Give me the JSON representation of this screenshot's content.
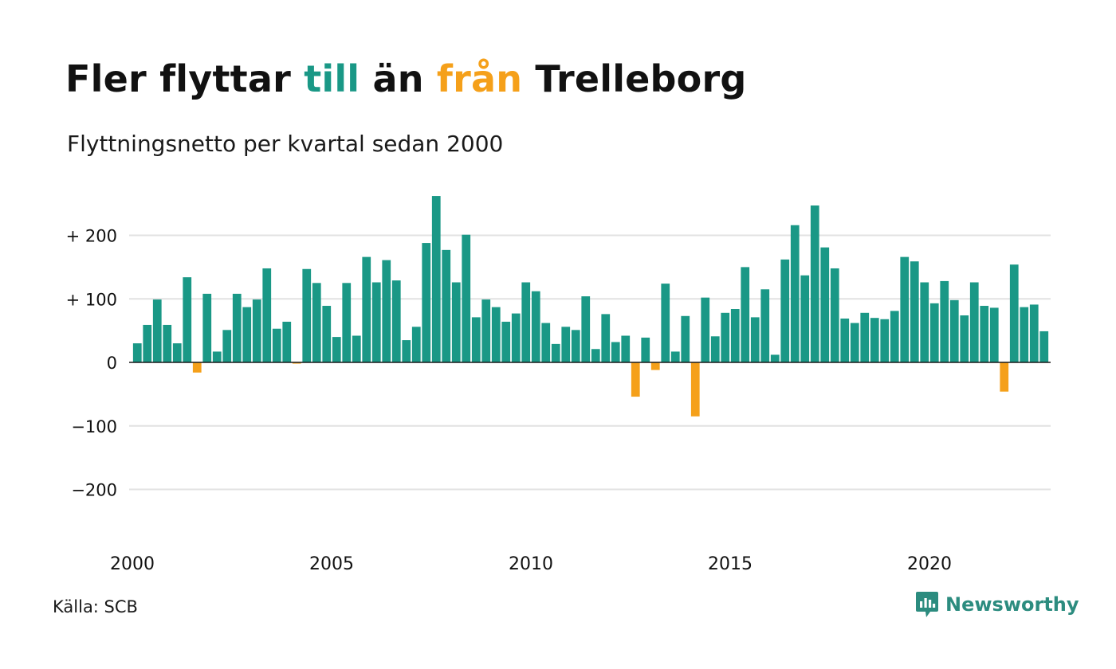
{
  "title": {
    "part1": "Fler flyttar ",
    "part2": "till",
    "part3": " än ",
    "part4": "från",
    "part5": " Trelleborg"
  },
  "subtitle": "Flyttningsnetto per kvartal sedan 2000",
  "source": "Källa: SCB",
  "brand": {
    "name": "Newsworthy",
    "icon": "newsworthy-logo-icon"
  },
  "colors": {
    "positive": "#1a9886",
    "negative": "#f5a01a",
    "text": "#111111",
    "grid": "#e2e2e2",
    "brand": "#2c8c7f"
  },
  "chart_data": {
    "type": "bar",
    "xlim": [
      2000,
      2023
    ],
    "ylim": [
      -250,
      260
    ],
    "y_ticks": [
      {
        "value": 200,
        "label": "+ 200"
      },
      {
        "value": 100,
        "label": "+ 100"
      },
      {
        "value": 0,
        "label": "0"
      },
      {
        "value": -100,
        "label": "−100"
      },
      {
        "value": -200,
        "label": "−200"
      }
    ],
    "x_ticks": [
      "2000",
      "2005",
      "2010",
      "2015",
      "2020"
    ],
    "grid": true,
    "start_year": 2000,
    "start_quarter": 1,
    "values": [
      30,
      59,
      99,
      59,
      30,
      134,
      -16,
      108,
      17,
      51,
      108,
      87,
      99,
      148,
      53,
      64,
      -2,
      147,
      125,
      89,
      40,
      125,
      42,
      166,
      126,
      161,
      129,
      35,
      56,
      188,
      262,
      177,
      126,
      201,
      71,
      99,
      87,
      64,
      77,
      126,
      112,
      62,
      29,
      56,
      51,
      104,
      21,
      76,
      32,
      42,
      -54,
      39,
      -12,
      124,
      17,
      73,
      -85,
      102,
      41,
      78,
      84,
      150,
      71,
      115,
      12,
      162,
      216,
      137,
      247,
      181,
      148,
      69,
      62,
      78,
      70,
      68,
      81,
      166,
      159,
      126,
      93,
      128,
      98,
      74,
      126,
      89,
      86,
      -46,
      154,
      87,
      91,
      49
    ]
  }
}
